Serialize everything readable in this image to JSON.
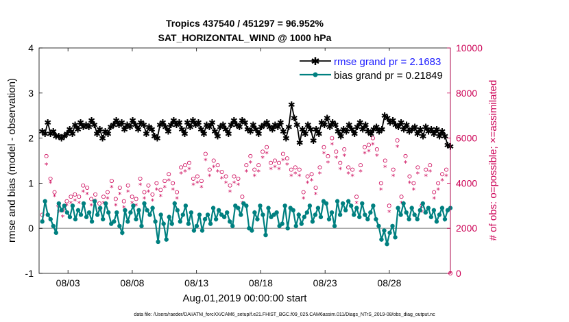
{
  "chart_data": {
    "type": "line",
    "title_line1": "Tropics 437540 / 451297 = 96.952%",
    "title_line2": "SAT_HORIZONTAL_WIND @ 1000 hPa",
    "xlabel": "Aug.01,2019 00:00:00 start",
    "ylabel_left": "rmse and bias (model - observation)",
    "ylabel_right": "# of obs: o=possible; ×=assimilated",
    "footer": "data file: /Users/raeder/DAI/ATM_forcXX/CAM6_setup/f.e21.FHIST_BGC.f09_025.CAM6assim.011/Diags_NTrS_2019-08/obs_diag_output.nc",
    "x_ticks": [
      "08/03",
      "08/08",
      "08/13",
      "08/18",
      "08/23",
      "08/28"
    ],
    "x_tick_days": [
      3,
      8,
      13,
      18,
      23,
      28
    ],
    "xlim": [
      0.75,
      32.75
    ],
    "y_left_ticks": [
      "-1",
      "0",
      "1",
      "2",
      "3",
      "4"
    ],
    "y_left_range": [
      -1,
      4
    ],
    "y_right_ticks": [
      "0",
      "2000",
      "4000",
      "6000",
      "8000",
      "10000"
    ],
    "y_right_range": [
      0,
      10000
    ],
    "colors": {
      "rmse": "#000000",
      "bias": "#008080",
      "obs": "#cc0055",
      "rmse_text": "#1a1aff",
      "zero_line": "#aaaaaa"
    },
    "series": [
      {
        "name": "rmse",
        "label": "rmse grand pr = 2.1683",
        "values": [
          2.15,
          2.1,
          2.35,
          2.1,
          2.15,
          2.05,
          2.05,
          2.0,
          2.05,
          2.1,
          2.2,
          2.1,
          2.3,
          2.2,
          2.35,
          2.25,
          2.3,
          2.25,
          2.4,
          2.3,
          2.1,
          2.2,
          2.0,
          2.15,
          2.1,
          2.25,
          2.3,
          2.4,
          2.3,
          2.35,
          2.2,
          2.3,
          2.25,
          2.4,
          2.3,
          2.2,
          2.35,
          2.3,
          2.1,
          2.25,
          2.2,
          2.05,
          2.0,
          2.3,
          2.35,
          2.25,
          2.15,
          2.3,
          2.4,
          2.3,
          2.35,
          2.2,
          2.1,
          2.35,
          2.25,
          2.4,
          2.3,
          2.35,
          2.2,
          2.1,
          2.3,
          2.25,
          2.35,
          2.15,
          2.05,
          2.25,
          2.3,
          2.2,
          2.1,
          2.3,
          2.4,
          2.3,
          2.25,
          2.4,
          2.35,
          2.2,
          2.15,
          2.3,
          2.2,
          2.1,
          2.25,
          2.3,
          2.35,
          2.25,
          2.2,
          2.3,
          2.25,
          2.35,
          2.15,
          2.0,
          2.25,
          2.75,
          2.45,
          2.3,
          1.9,
          2.2,
          2.1,
          2.3,
          2.2,
          1.95,
          2.2,
          2.1,
          2.35,
          2.3,
          2.45,
          2.25,
          2.35,
          2.3,
          2.15,
          2.05,
          2.2,
          2.15,
          2.3,
          2.2,
          2.1,
          2.25,
          2.35,
          2.2,
          2.3,
          2.15,
          2.1,
          2.2,
          2.25,
          2.15,
          2.2,
          2.5,
          2.45,
          2.35,
          2.4,
          2.3,
          2.25,
          2.35,
          2.2,
          2.3,
          2.15,
          2.2,
          2.25,
          2.1,
          2.2,
          2.05,
          2.25,
          2.15,
          2.2,
          2.1,
          2.2,
          2.05,
          2.15,
          2.05,
          1.85,
          1.82
        ]
      },
      {
        "name": "bias",
        "label": "bias grand pr = 0.21849",
        "values": [
          0.15,
          0.6,
          0.3,
          0.2,
          0.05,
          -0.1,
          0.55,
          0.4,
          0.5,
          0.35,
          0.25,
          0.5,
          0.2,
          0.4,
          0.3,
          0.55,
          0.25,
          0.35,
          0.15,
          0.6,
          0.3,
          0.45,
          0.2,
          0.55,
          0.35,
          0.1,
          0.15,
          0.35,
          0.05,
          -0.1,
          0.4,
          0.15,
          0.35,
          0.5,
          0.2,
          0.4,
          0.05,
          0.55,
          0.4,
          0.3,
          0.45,
          0.15,
          -0.3,
          0.3,
          0.1,
          -0.25,
          0.25,
          0.1,
          0.55,
          0.4,
          0.15,
          0.3,
          0.5,
          0.1,
          0.35,
          -0.05,
          0.05,
          0.3,
          -0.05,
          0.2,
          0.3,
          0.1,
          0.45,
          0.2,
          0.4,
          0.3,
          0.25,
          0.35,
          0.15,
          0.05,
          0.5,
          0.45,
          0.3,
          0.55,
          0.5,
          0.0,
          -0.05,
          0.35,
          0.2,
          0.5,
          0.3,
          -0.15,
          0.45,
          0.25,
          0.3,
          0.35,
          0.05,
          0.1,
          0.5,
          0.0,
          0.45,
          0.4,
          0.05,
          0.3,
          0.1,
          0.25,
          0.35,
          0.5,
          0.15,
          0.3,
          0.45,
          0.25,
          0.6,
          0.55,
          0.2,
          0.35,
          0.05,
          0.6,
          0.3,
          0.55,
          0.4,
          0.6,
          0.5,
          0.3,
          0.45,
          0.25,
          0.55,
          0.3,
          0.2,
          0.35,
          0.5,
          0.2,
          0.05,
          -0.25,
          -0.05,
          -0.35,
          -0.1,
          0.05,
          -0.2,
          0.45,
          0.3,
          0.55,
          0.35,
          0.2,
          0.45,
          0.3,
          0.2,
          0.4,
          0.55,
          0.35,
          0.45,
          0.25,
          0.4,
          0.15,
          0.3,
          0.45,
          0.2,
          0.4,
          0.45
        ]
      },
      {
        "name": "possible",
        "label": "o=possible",
        "values": [
          2600,
          5200,
          4200,
          3600,
          3000,
          2800,
          3200,
          3400,
          3500,
          3400,
          3900,
          3800,
          3300,
          3500,
          3100,
          3400,
          3600,
          4100,
          3300,
          3800,
          3200,
          3900,
          3400,
          3300,
          4200,
          3600,
          3900,
          3500,
          4000,
          3700,
          4100,
          4400,
          4000,
          3600,
          4700,
          4800,
          4900,
          4200,
          4300,
          4100,
          5300,
          4600,
          5000,
          4800,
          4500,
          4300,
          3900,
          4300,
          4200,
          3400,
          4800,
          5200,
          4600,
          4800,
          5400,
          5600,
          4900,
          5000,
          4900,
          5300,
          5100,
          4600,
          4700,
          4600,
          3600,
          4300,
          4400,
          3800,
          4700,
          5600,
          5200,
          6000,
          5400,
          4900,
          5500,
          4700,
          4600,
          3400,
          4800,
          5600,
          5700,
          6000,
          5500,
          4000,
          5000,
          3000,
          4600,
          5900,
          3400,
          5200,
          4300,
          4000,
          4700,
          3000,
          4600,
          4800,
          3600,
          4000,
          4400,
          4600,
          0
        ]
      },
      {
        "name": "assimilated",
        "label": "×=assimilated",
        "values": [
          2300,
          4800,
          4000,
          3400,
          2700,
          2500,
          3000,
          3100,
          3200,
          3100,
          3600,
          3500,
          3000,
          3200,
          2800,
          3100,
          3300,
          3800,
          3000,
          3500,
          2900,
          3600,
          3100,
          3000,
          3900,
          3300,
          3600,
          3200,
          3700,
          3400,
          3800,
          4100,
          3700,
          3300,
          4400,
          4500,
          4600,
          3900,
          4000,
          3800,
          5000,
          4300,
          4700,
          4500,
          4200,
          4000,
          3600,
          4000,
          3900,
          3100,
          4500,
          4900,
          4300,
          4500,
          5100,
          5300,
          4600,
          4700,
          4600,
          5000,
          4800,
          4300,
          4400,
          4300,
          3300,
          4000,
          4100,
          3500,
          4400,
          5300,
          4900,
          5700,
          5100,
          4600,
          5200,
          4400,
          4300,
          3100,
          4500,
          5300,
          5400,
          5700,
          5200,
          3700,
          4700,
          2700,
          4300,
          5600,
          3100,
          4900,
          4000,
          3700,
          4400,
          2700,
          4300,
          4500,
          3300,
          3700,
          4100,
          4300,
          0
        ]
      }
    ]
  }
}
